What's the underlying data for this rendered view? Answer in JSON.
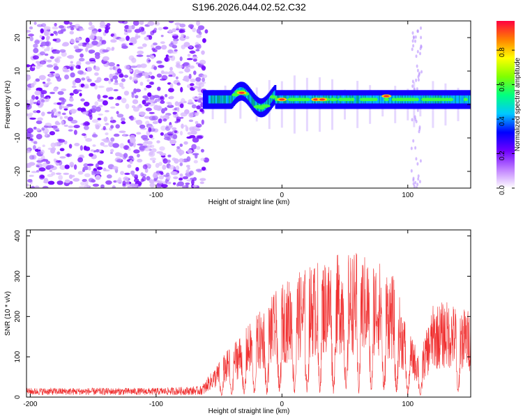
{
  "title": "S196.2026.044.02.52.C32",
  "chart_data": [
    {
      "type": "heatmap",
      "name": "spectrogram",
      "xlabel": "Height of straight line (km)",
      "ylabel": "Frequency (Hz)",
      "xlim": [
        -203,
        150
      ],
      "ylim": [
        -25,
        25
      ],
      "xticks": [
        -200,
        -100,
        0,
        100
      ],
      "yticks": [
        -20,
        -10,
        0,
        10,
        20
      ],
      "noise_region_x": [
        -203,
        -60
      ],
      "signal_region_x": [
        -60,
        150
      ],
      "signal_frequency_hz": 1.5,
      "colorbar": {
        "label": "Normalized spectral amplitude",
        "range": [
          0,
          0.97
        ],
        "ticks": [
          0.0,
          0.2,
          0.4,
          0.6,
          0.8
        ],
        "tick_labels": [
          "0.0",
          "0.2",
          "0.4",
          "0.6",
          "0.8"
        ],
        "colors": [
          "#ffffff",
          "#c080ff",
          "#7000ff",
          "#0000ff",
          "#00c8ff",
          "#00ff80",
          "#80ff00",
          "#ffff00",
          "#ff8000",
          "#ff0040"
        ]
      }
    },
    {
      "type": "line",
      "name": "snr",
      "xlabel": "Height of straight line (km)",
      "ylabel": "SNR (10 * v/v)",
      "xlim": [
        -203,
        150
      ],
      "ylim": [
        0,
        415
      ],
      "xticks": [
        -200,
        -100,
        0,
        100
      ],
      "yticks": [
        0,
        100,
        200,
        300,
        400
      ],
      "color": "#ff0000",
      "envelope": {
        "x": [
          -203,
          -100,
          -65,
          -55,
          -40,
          -20,
          0,
          20,
          40,
          60,
          80,
          90,
          100,
          110,
          120,
          130,
          150
        ],
        "y": [
          18,
          18,
          22,
          55,
          110,
          170,
          235,
          270,
          295,
          300,
          280,
          245,
          140,
          90,
          190,
          200,
          180
        ]
      }
    }
  ]
}
